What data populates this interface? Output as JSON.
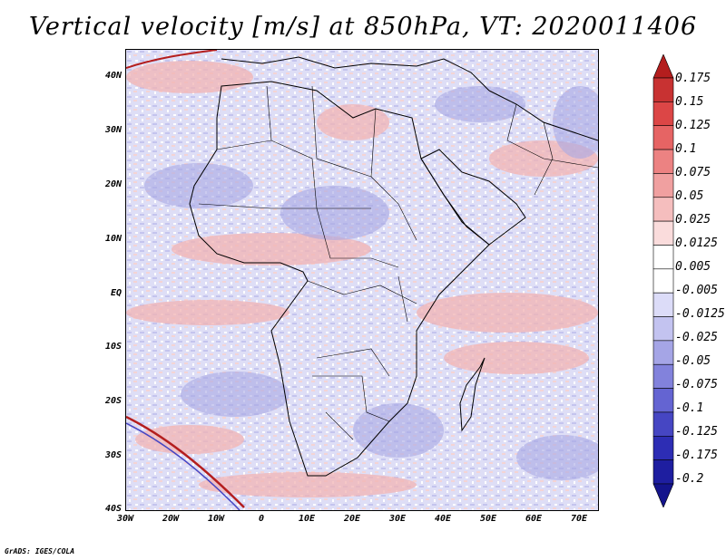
{
  "title": "Vertical velocity [m/s] at 850hPa, VT: 2020011406",
  "credit": "GrADS: IGES/COLA",
  "map": {
    "lon_range": [
      -30,
      75
    ],
    "lat_range": [
      -40,
      45
    ],
    "lat_ticks": [
      "40N",
      "30N",
      "20N",
      "10N",
      "EQ",
      "10S",
      "20S",
      "30S",
      "40S"
    ],
    "lon_ticks": [
      "30W",
      "20W",
      "10W",
      "0",
      "10E",
      "20E",
      "30E",
      "40E",
      "50E",
      "60E",
      "70E"
    ],
    "region": "Africa and Arabian Peninsula",
    "background_color": "#dcdcf4"
  },
  "colorbar": {
    "labels": [
      "0.175",
      "0.15",
      "0.125",
      "0.1",
      "0.075",
      "0.05",
      "0.025",
      "0.0125",
      "0.005",
      "-0.005",
      "-0.0125",
      "-0.025",
      "-0.05",
      "-0.075",
      "-0.1",
      "-0.125",
      "-0.175",
      "-0.2"
    ],
    "colors": [
      "#b41e1e",
      "#c83232",
      "#dc4646",
      "#e66464",
      "#ec8282",
      "#f0a0a0",
      "#f5bebe",
      "#fadcdc",
      "#ffffff",
      "#ffffff",
      "#dcdcf8",
      "#c3c3f0",
      "#a5a5e6",
      "#8282dc",
      "#6464d2",
      "#4646c3",
      "#2d2db4",
      "#1e1ea0",
      "#14148c"
    ]
  }
}
